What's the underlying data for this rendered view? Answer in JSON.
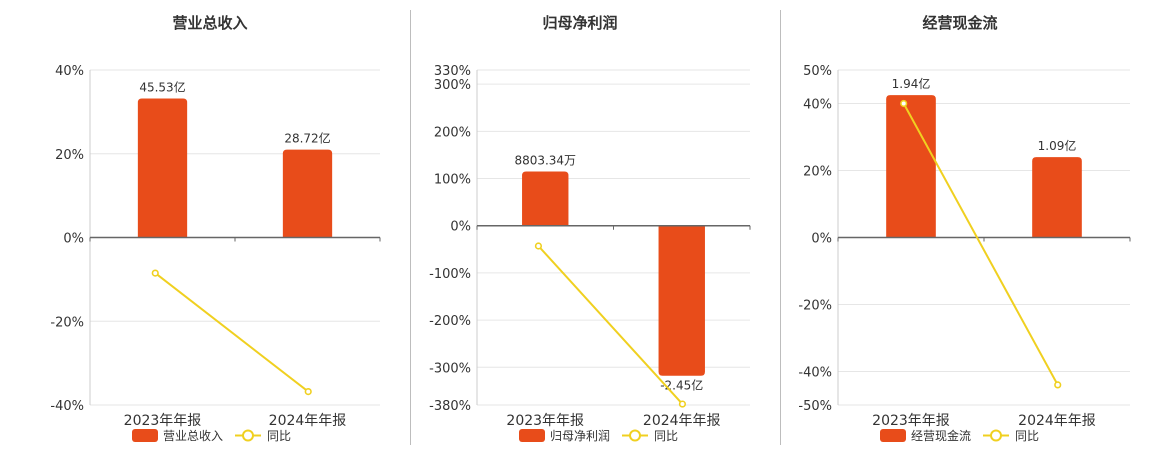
{
  "chart_data": [
    {
      "type": "bar",
      "title": "营业总收入",
      "categories": [
        "2023年年报",
        "2024年年报"
      ],
      "series": [
        {
          "name": "营业总收入",
          "type": "bar",
          "values": [
            33.2,
            21.0
          ],
          "labels": [
            "45.53亿",
            "28.72亿"
          ]
        },
        {
          "name": "同比",
          "type": "line",
          "values": [
            -8.5,
            -36.8
          ]
        }
      ],
      "ylim": [
        -40,
        40
      ],
      "ticks": [
        "40%",
        "20%",
        "0%",
        "-20%",
        "-40%"
      ],
      "tick_values": [
        40,
        20,
        0,
        -20,
        -40
      ],
      "grid": true,
      "legend": "bottom"
    },
    {
      "type": "bar",
      "title": "归母净利润",
      "categories": [
        "2023年年报",
        "2024年年报"
      ],
      "series": [
        {
          "name": "归母净利润",
          "type": "bar",
          "values": [
            115,
            -318
          ],
          "labels": [
            "8803.34万",
            "-2.45亿"
          ]
        },
        {
          "name": "同比",
          "type": "line",
          "values": [
            -43,
            -378
          ]
        }
      ],
      "ylim": [
        -380,
        330
      ],
      "ticks": [
        "330%",
        "300%",
        "200%",
        "100%",
        "0%",
        "-100%",
        "-200%",
        "-300%",
        "-380%"
      ],
      "tick_values": [
        330,
        300,
        200,
        100,
        0,
        -100,
        -200,
        -300,
        -380
      ],
      "grid": true,
      "legend": "bottom"
    },
    {
      "type": "bar",
      "title": "经营现金流",
      "categories": [
        "2023年年报",
        "2024年年报"
      ],
      "series": [
        {
          "name": "经营现金流",
          "type": "bar",
          "values": [
            42.5,
            24.0
          ],
          "labels": [
            "1.94亿",
            "1.09亿"
          ]
        },
        {
          "name": "同比",
          "type": "line",
          "values": [
            40,
            -44
          ]
        }
      ],
      "ylim": [
        -50,
        50
      ],
      "ticks": [
        "50%",
        "40%",
        "20%",
        "0%",
        "-20%",
        "-40%",
        "-50%"
      ],
      "tick_values": [
        50,
        40,
        20,
        0,
        -20,
        -40,
        -50
      ],
      "grid": true,
      "legend": "bottom"
    }
  ],
  "colors": {
    "bar": "#e84c1a",
    "line": "#f0d020",
    "grid": "#e6e6e6",
    "axis": "#666666",
    "text": "#333333"
  }
}
